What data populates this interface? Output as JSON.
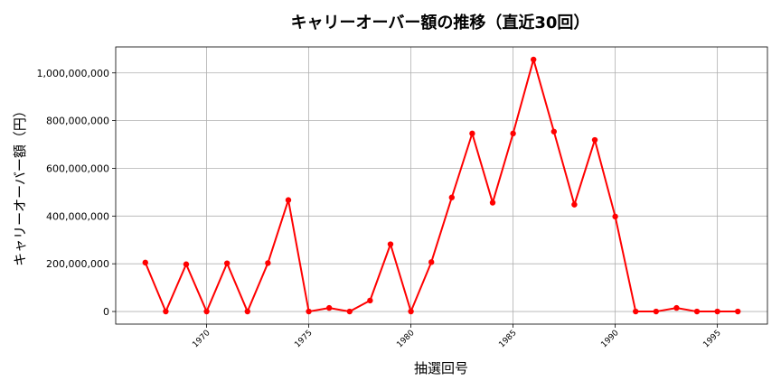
{
  "chart_data": {
    "type": "line",
    "title": "キャリーオーバー額の推移（直近30回）",
    "xlabel": "抽選回号",
    "ylabel": "キャリーオーバー額（円）",
    "x": [
      1967,
      1968,
      1969,
      1970,
      1971,
      1972,
      1973,
      1974,
      1975,
      1976,
      1977,
      1978,
      1979,
      1980,
      1981,
      1982,
      1983,
      1984,
      1985,
      1986,
      1987,
      1988,
      1989,
      1990,
      1991,
      1992,
      1993,
      1994,
      1995,
      1996
    ],
    "series": [
      {
        "values": [
          205000000,
          0,
          198000000,
          0,
          202000000,
          0,
          203000000,
          467000000,
          0,
          15000000,
          0,
          46000000,
          282000000,
          0,
          207000000,
          478000000,
          746000000,
          456000000,
          746000000,
          1056000000,
          754000000,
          448000000,
          719000000,
          398000000,
          0,
          0,
          15000000,
          0,
          0,
          0
        ],
        "color": "#ff0000"
      }
    ],
    "xlim": [
      1965.55,
      1997.45
    ],
    "ylim": [
      -52800000,
      1108800000
    ],
    "xticks": [
      1970,
      1975,
      1980,
      1985,
      1990,
      1995
    ],
    "yticks": [
      0,
      200000000,
      400000000,
      600000000,
      800000000,
      1000000000
    ],
    "ytick_labels": [
      "0",
      "200,000,000",
      "400,000,000",
      "600,000,000",
      "800,000,000",
      "1,000,000,000"
    ],
    "grid": true,
    "legend": "none"
  }
}
